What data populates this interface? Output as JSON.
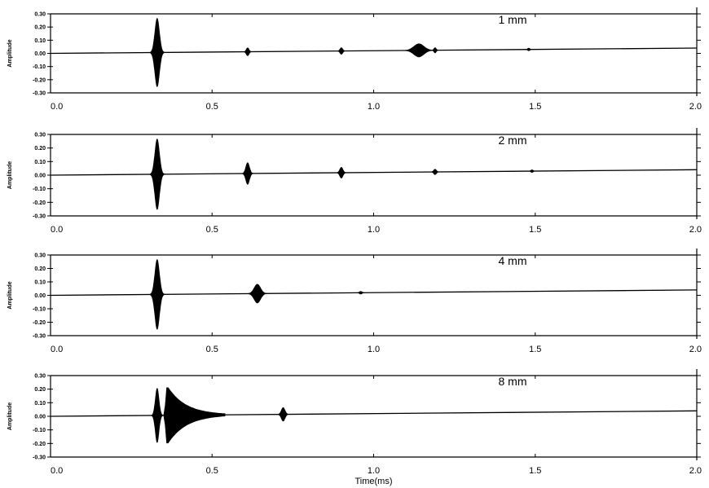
{
  "chart_data": [
    {
      "type": "line",
      "label": "1 mm",
      "ylabel": "Amplitude",
      "xlabel": "",
      "xlim": [
        0.0,
        2.0
      ],
      "ylim": [
        -0.3,
        0.3
      ],
      "baseline": [
        0.0,
        0.04
      ],
      "x_ticks": [
        "0.0",
        "0.5",
        "1.0",
        "1.5",
        "2.0"
      ],
      "y_ticks": [
        "0.30",
        "0.20",
        "0.10",
        "0.00",
        "-0.10",
        "-0.20",
        "-0.30"
      ],
      "bursts": [
        {
          "t": 0.33,
          "amp": 0.26,
          "width": 0.01
        },
        {
          "t": 0.61,
          "amp": 0.03,
          "width": 0.006
        },
        {
          "t": 0.9,
          "amp": 0.025,
          "width": 0.006
        },
        {
          "t": 1.14,
          "amp": 0.05,
          "width": 0.022
        },
        {
          "t": 1.19,
          "amp": 0.02,
          "width": 0.005
        },
        {
          "t": 1.48,
          "amp": 0.01,
          "width": 0.005
        }
      ]
    },
    {
      "type": "line",
      "label": "2 mm",
      "ylabel": "Amplitude",
      "xlabel": "",
      "xlim": [
        0.0,
        2.0
      ],
      "ylim": [
        -0.3,
        0.3
      ],
      "baseline": [
        0.0,
        0.04
      ],
      "x_ticks": [
        "0.0",
        "0.5",
        "1.0",
        "1.5",
        "2.0"
      ],
      "y_ticks": [
        "0.30",
        "0.20",
        "0.10",
        "0.00",
        "-0.10",
        "-0.20",
        "-0.30"
      ],
      "bursts": [
        {
          "t": 0.33,
          "amp": 0.26,
          "width": 0.01
        },
        {
          "t": 0.61,
          "amp": 0.08,
          "width": 0.008
        },
        {
          "t": 0.9,
          "amp": 0.04,
          "width": 0.007
        },
        {
          "t": 1.19,
          "amp": 0.02,
          "width": 0.006
        },
        {
          "t": 1.49,
          "amp": 0.01,
          "width": 0.005
        }
      ]
    },
    {
      "type": "line",
      "label": "4 mm",
      "ylabel": "Amplitude",
      "xlabel": "",
      "xlim": [
        0.0,
        2.0
      ],
      "ylim": [
        -0.3,
        0.3
      ],
      "baseline": [
        0.0,
        0.04
      ],
      "x_ticks": [
        "0.0",
        "0.5",
        "1.0",
        "1.5",
        "2.0"
      ],
      "y_ticks": [
        "0.30",
        "0.20",
        "0.10",
        "0.00",
        "-0.10",
        "-0.20",
        "-0.30"
      ],
      "bursts": [
        {
          "t": 0.33,
          "amp": 0.26,
          "width": 0.01
        },
        {
          "t": 0.64,
          "amp": 0.07,
          "width": 0.014
        },
        {
          "t": 0.96,
          "amp": 0.01,
          "width": 0.006
        }
      ]
    },
    {
      "type": "line",
      "label": "8 mm",
      "ylabel": "Amplitude",
      "xlabel": "Time(ms)",
      "xlim": [
        0.0,
        2.0
      ],
      "ylim": [
        -0.3,
        0.3
      ],
      "baseline": [
        0.0,
        0.04
      ],
      "x_ticks": [
        "0.0",
        "0.5",
        "1.0",
        "1.5",
        "2.0"
      ],
      "y_ticks": [
        "0.30",
        "0.20",
        "0.10",
        "0.00",
        "-0.10",
        "-0.20",
        "-0.30"
      ],
      "bursts": [
        {
          "t": 0.33,
          "amp": 0.2,
          "width": 0.008
        },
        {
          "t": 0.36,
          "amp": 0.22,
          "width": 0.01,
          "decay": 0.18
        },
        {
          "t": 0.72,
          "amp": 0.05,
          "width": 0.008
        }
      ]
    }
  ]
}
